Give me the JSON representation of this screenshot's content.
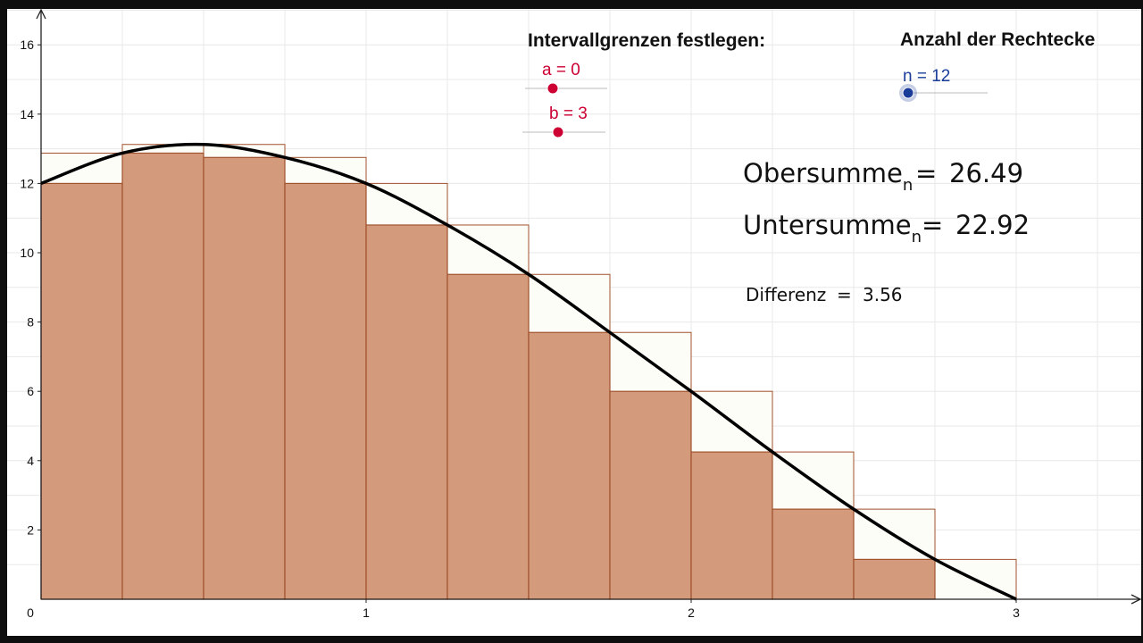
{
  "controls": {
    "interval_heading": "Intervallgrenzen festlegen:",
    "count_heading": "Anzahl der Rechtecke",
    "slider_a_label": "a = 0",
    "slider_a_value": 0,
    "slider_b_label": "b = 3",
    "slider_b_value": 3,
    "slider_n_label": "n = 12",
    "slider_n_value": 12
  },
  "results": {
    "obersumme_name": "Obersumme",
    "obersumme_sub": "n",
    "obersumme_eq": "=",
    "obersumme_value": "26.49",
    "untersumme_name": "Untersumme",
    "untersumme_sub": "n",
    "untersumme_eq": "=",
    "untersumme_value": "22.92",
    "differenz_name": "Differenz",
    "differenz_eq": "=",
    "differenz_value": "3.56"
  },
  "colors": {
    "lower_fill": "#d49a7c",
    "rect_stroke": "#a0522d",
    "upper_fill": "#fdfdf8",
    "curve": "#000000",
    "slider_ab": "#cc0033",
    "slider_n": "#1a3d99",
    "text_n": "#1a3d99",
    "text_ab": "#cc0033"
  },
  "chart_data": {
    "type": "bar",
    "function_points": [
      [
        0,
        12
      ],
      [
        0.25,
        12.875
      ],
      [
        0.5,
        13.125
      ],
      [
        0.75,
        12.75
      ],
      [
        1,
        12
      ],
      [
        1.25,
        10.8
      ],
      [
        1.5,
        9.375
      ],
      [
        1.75,
        7.7
      ],
      [
        2,
        6
      ],
      [
        2.25,
        4.25
      ],
      [
        2.5,
        2.6
      ],
      [
        2.75,
        1.15
      ],
      [
        3,
        0
      ]
    ],
    "interval": [
      0,
      3
    ],
    "n": 12,
    "lower_sums": [
      12,
      12.875,
      12.75,
      12,
      10.8,
      9.375,
      7.7,
      6,
      4.25,
      2.6,
      1.15,
      0
    ],
    "upper_sums": [
      12.875,
      13.125,
      13.125,
      12.75,
      12,
      10.8,
      9.375,
      7.7,
      6,
      4.25,
      2.6,
      1.15
    ],
    "xlim": [
      0,
      3.4
    ],
    "ylim": [
      0,
      17
    ],
    "x_ticks": [
      "0",
      "1",
      "2",
      "3"
    ],
    "y_ticks": [
      "2",
      "4",
      "6",
      "8",
      "10",
      "12",
      "14",
      "16"
    ],
    "grid": true
  }
}
